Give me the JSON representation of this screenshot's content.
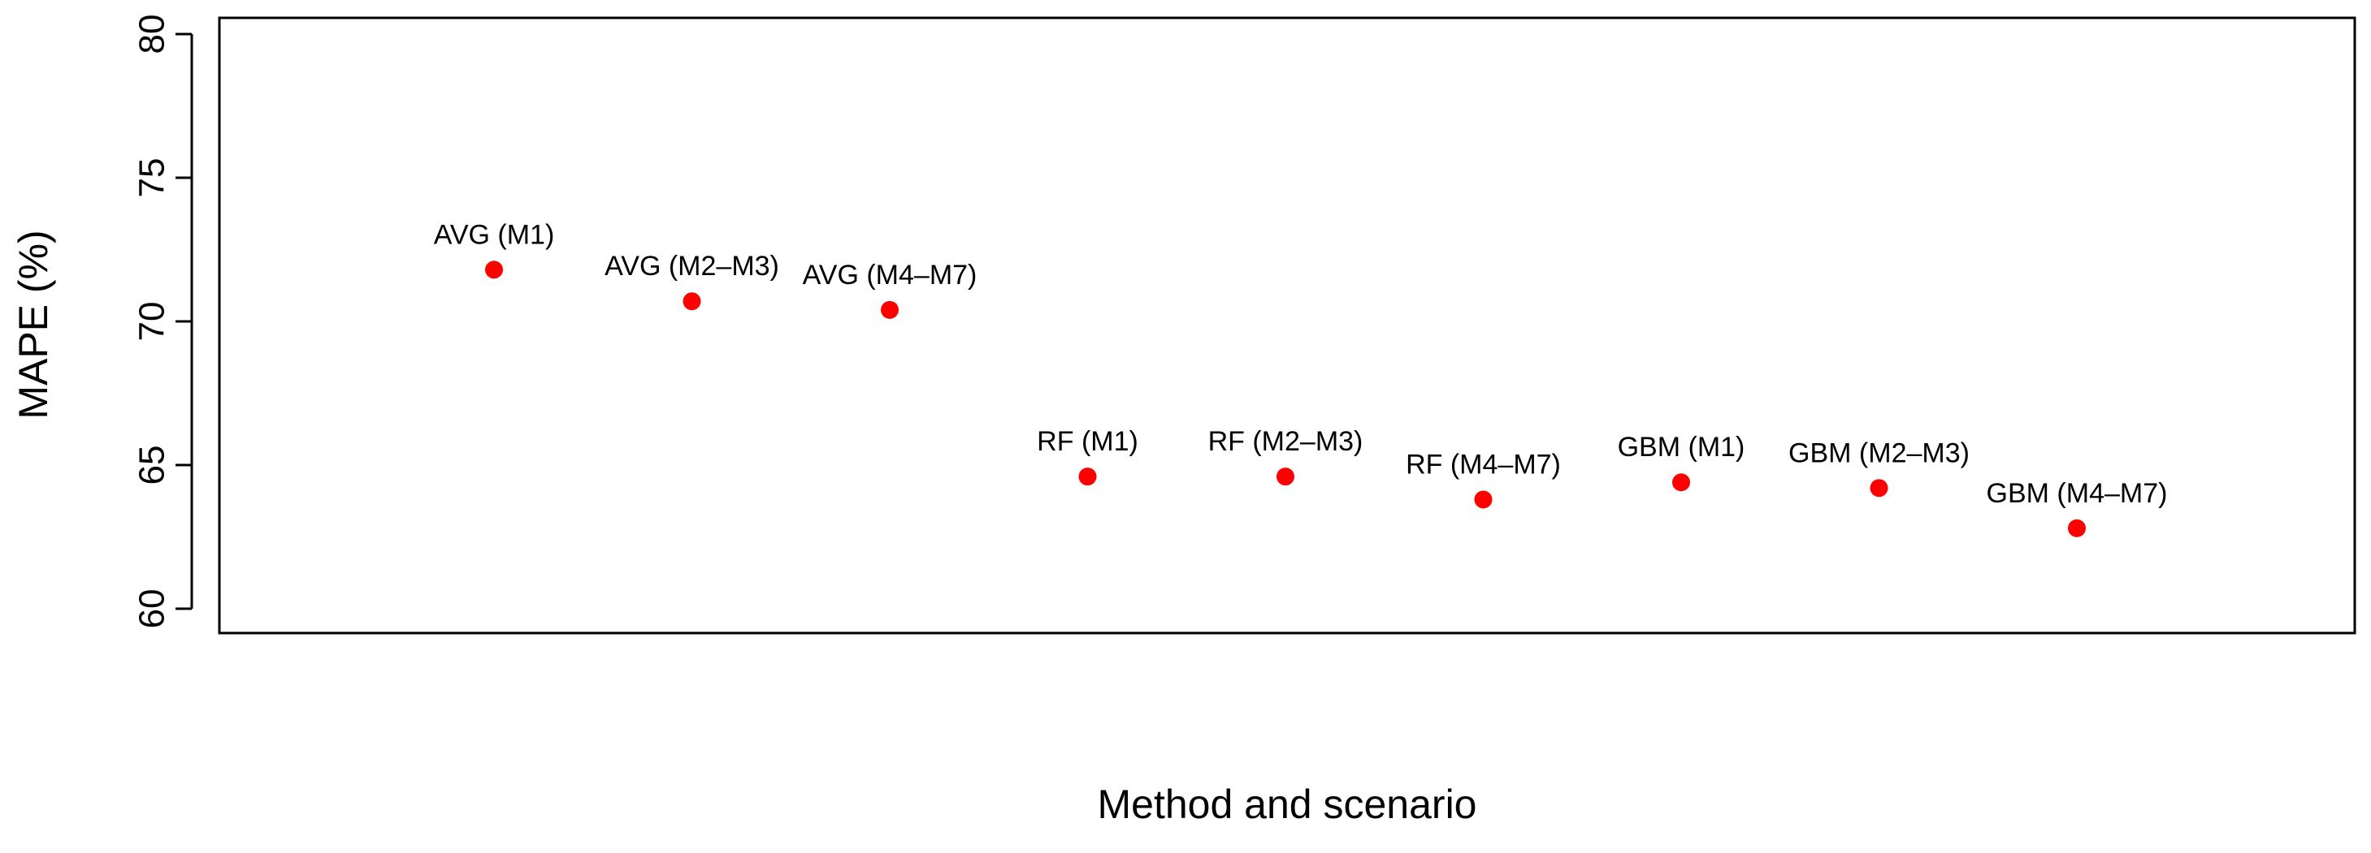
{
  "chart_data": {
    "type": "scatter",
    "title": "",
    "xlabel": "Method and scenario",
    "ylabel": "MAPE (%)",
    "ylim": [
      60,
      80
    ],
    "yticks": [
      60,
      65,
      70,
      75,
      80
    ],
    "xticks": [],
    "grid": false,
    "legend": null,
    "point_color": "#ff0000",
    "points": [
      {
        "label": "AVG (M1)",
        "x": 1,
        "y": 71.8
      },
      {
        "label": "AVG (M2–M3)",
        "x": 2,
        "y": 70.7
      },
      {
        "label": "AVG (M4–M7)",
        "x": 3,
        "y": 70.4
      },
      {
        "label": "RF (M1)",
        "x": 4,
        "y": 64.6
      },
      {
        "label": "RF (M2–M3)",
        "x": 5,
        "y": 64.6
      },
      {
        "label": "RF (M4–M7)",
        "x": 6,
        "y": 63.8
      },
      {
        "label": "GBM (M1)",
        "x": 7,
        "y": 64.4
      },
      {
        "label": "GBM (M2–M3)",
        "x": 8,
        "y": 64.2
      },
      {
        "label": "GBM (M4–M7)",
        "x": 9,
        "y": 62.8
      }
    ]
  }
}
